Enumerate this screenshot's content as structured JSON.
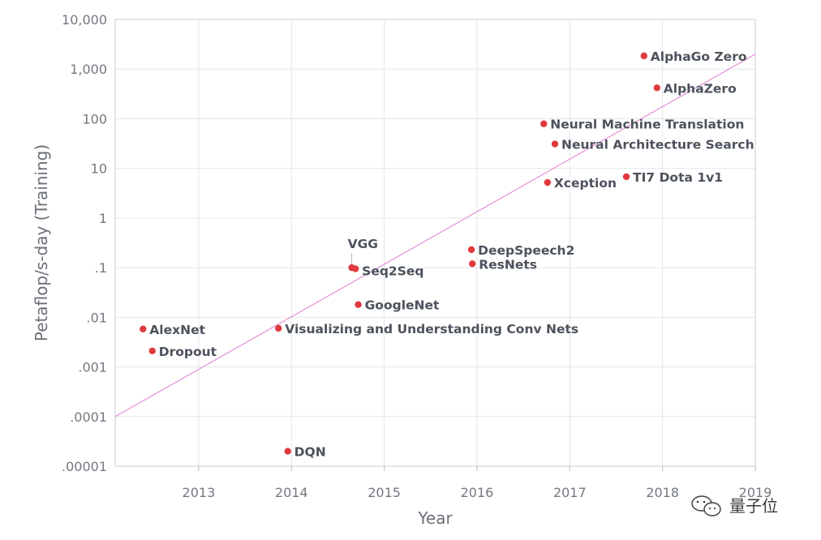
{
  "chart_data": {
    "type": "scatter",
    "xlabel": "Year",
    "ylabel": "Petaflop/s-day (Training)",
    "xlim": [
      2012.1,
      2019
    ],
    "ylim": [
      1e-05,
      10000
    ],
    "yscale": "log",
    "x_ticks": [
      2013,
      2014,
      2015,
      2016,
      2017,
      2018,
      2019
    ],
    "x_tick_labels": [
      "2013",
      "2014",
      "2015",
      "2016",
      "2017",
      "2018",
      "2019"
    ],
    "y_ticks": [
      1e-05,
      0.0001,
      0.001,
      0.01,
      0.1,
      1,
      10,
      100,
      1000,
      10000
    ],
    "y_tick_labels": [
      ".00001",
      ".0001",
      ".001",
      ".01",
      ".1",
      "1",
      "10",
      "100",
      "1,000",
      "10,000"
    ],
    "grid": true,
    "point_color": "#e0393e",
    "trend_color": "#e58fd6",
    "trend_line": {
      "x": [
        2012.1,
        2019
      ],
      "y": [
        0.0001,
        2000
      ]
    },
    "points": [
      {
        "label": "AlexNet",
        "x": 2012.4,
        "y": 0.0058
      },
      {
        "label": "Dropout",
        "x": 2012.5,
        "y": 0.0021
      },
      {
        "label": "Visualizing and Understanding Conv Nets",
        "x": 2013.86,
        "y": 0.006
      },
      {
        "label": "DQN",
        "x": 2013.96,
        "y": 2e-05
      },
      {
        "label": "VGG",
        "x": 2014.65,
        "y": 0.1
      },
      {
        "label": "Seq2Seq",
        "x": 2014.69,
        "y": 0.095
      },
      {
        "label": "GoogleNet",
        "x": 2014.72,
        "y": 0.018
      },
      {
        "label": "DeepSpeech2",
        "x": 2015.94,
        "y": 0.23
      },
      {
        "label": "ResNets",
        "x": 2015.95,
        "y": 0.12
      },
      {
        "label": "Neural Machine Translation",
        "x": 2016.72,
        "y": 79
      },
      {
        "label": "Neural Architecture Search",
        "x": 2016.84,
        "y": 31
      },
      {
        "label": "Xception",
        "x": 2016.76,
        "y": 5.2
      },
      {
        "label": "TI7 Dota 1v1",
        "x": 2017.61,
        "y": 6.8
      },
      {
        "label": "AlphaGo Zero",
        "x": 2017.8,
        "y": 1850
      },
      {
        "label": "AlphaZero",
        "x": 2017.94,
        "y": 420
      }
    ]
  },
  "watermark": {
    "text": "量子位"
  }
}
